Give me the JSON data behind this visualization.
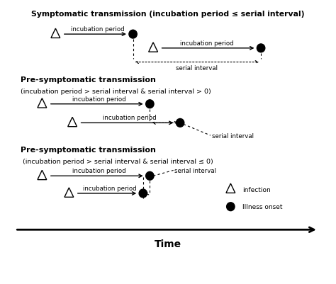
{
  "title1": "Symptomatic transmission (incubation period ≤ serial interval)",
  "title2": "Pre-symptomatic transmission",
  "title2b": "(incubation period > serial interval & serial interval > 0)",
  "title3": "Pre-symptomatic transmission",
  "title3b": " (incubation period > serial interval & serial interval ≤ 0)",
  "time_label": "Time",
  "legend_infection": "infection",
  "legend_illness": "Illness onset"
}
